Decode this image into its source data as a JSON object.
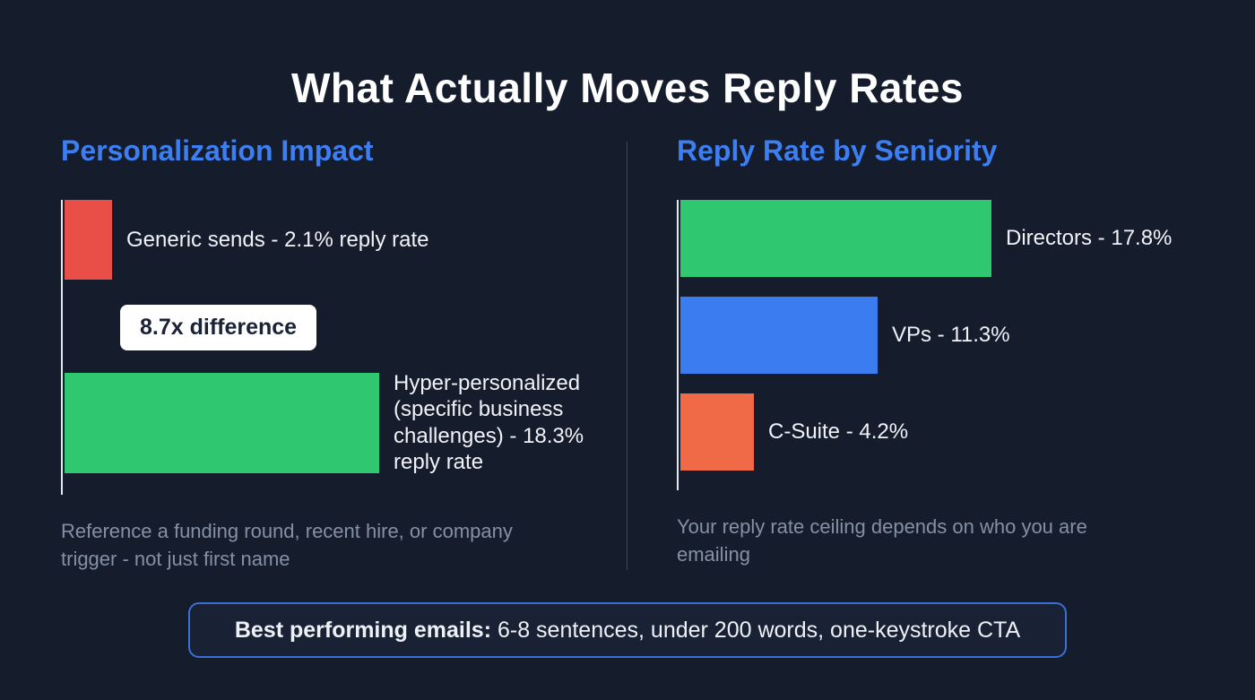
{
  "title": "What Actually Moves Reply Rates",
  "colors": {
    "background": "#151d2d",
    "heading_blue": "#3d7ff2",
    "bar_red": "#e94f47",
    "bar_green": "#2fc76f",
    "bar_blue": "#3b7cf0",
    "bar_orange": "#f06a47",
    "caption_gray": "#8490a4",
    "badge_bg": "#ffffff",
    "badge_text": "#1a2335",
    "footer_border": "#3a6fd6",
    "axis_line": "#e5e8ee"
  },
  "left_panel": {
    "heading": "Personalization Impact",
    "bars": [
      {
        "label": "Generic sends - 2.1% reply rate",
        "value": 2.1,
        "color": "#e94f47"
      },
      {
        "label": "Hyper-personalized (specific business challenges) - 18.3% reply rate",
        "value": 18.3,
        "color": "#2fc76f"
      }
    ],
    "badge": "8.7x difference",
    "caption": "Reference a funding round, recent hire, or company trigger - not just first name"
  },
  "right_panel": {
    "heading": "Reply Rate by Seniority",
    "bars": [
      {
        "label": "Directors - 17.8%",
        "value": 17.8,
        "color": "#2fc76f"
      },
      {
        "label": "VPs - 11.3%",
        "value": 11.3,
        "color": "#3b7cf0"
      },
      {
        "label": "C-Suite - 4.2%",
        "value": 4.2,
        "color": "#f06a47"
      }
    ],
    "caption": "Your reply rate ceiling depends on who you are emailing"
  },
  "footer": {
    "bold": "Best performing emails:",
    "rest": " 6-8 sentences, under 200 words, one-keystroke CTA"
  },
  "chart_data": [
    {
      "type": "bar",
      "orientation": "horizontal",
      "title": "Personalization Impact",
      "categories": [
        "Generic sends",
        "Hyper-personalized (specific business challenges)"
      ],
      "values": [
        2.1,
        18.3
      ],
      "unit": "% reply rate",
      "colors": [
        "#e94f47",
        "#2fc76f"
      ],
      "annotations": [
        "8.7x difference"
      ],
      "note": "Reference a funding round, recent hire, or company trigger - not just first name",
      "xlim": [
        0,
        20
      ],
      "grid": false,
      "legend": "none"
    },
    {
      "type": "bar",
      "orientation": "horizontal",
      "title": "Reply Rate by Seniority",
      "categories": [
        "Directors",
        "VPs",
        "C-Suite"
      ],
      "values": [
        17.8,
        11.3,
        4.2
      ],
      "unit": "% reply rate",
      "colors": [
        "#2fc76f",
        "#3b7cf0",
        "#f06a47"
      ],
      "note": "Your reply rate ceiling depends on who you are emailing",
      "xlim": [
        0,
        20
      ],
      "grid": false,
      "legend": "none"
    }
  ]
}
